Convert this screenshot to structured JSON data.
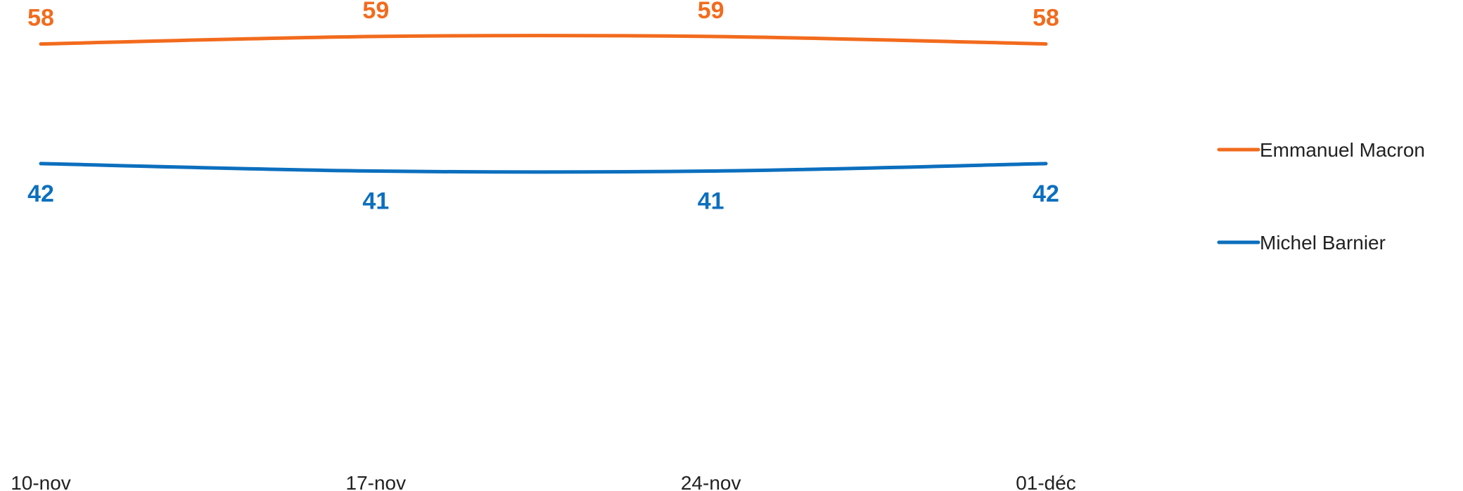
{
  "chart_data": {
    "type": "line",
    "categories": [
      "10-nov",
      "17-nov",
      "24-nov",
      "01-déc"
    ],
    "series": [
      {
        "name": "Emmanuel Macron",
        "color": "#F26B1D",
        "values": [
          58,
          59,
          59,
          58
        ]
      },
      {
        "name": "Michel Barnier",
        "color": "#0C6FBE",
        "values": [
          42,
          41,
          41,
          42
        ]
      }
    ],
    "ylim": [
      0,
      62
    ],
    "grid": false,
    "legend_position": "right",
    "xlabel": "",
    "ylabel": "",
    "title": ""
  }
}
